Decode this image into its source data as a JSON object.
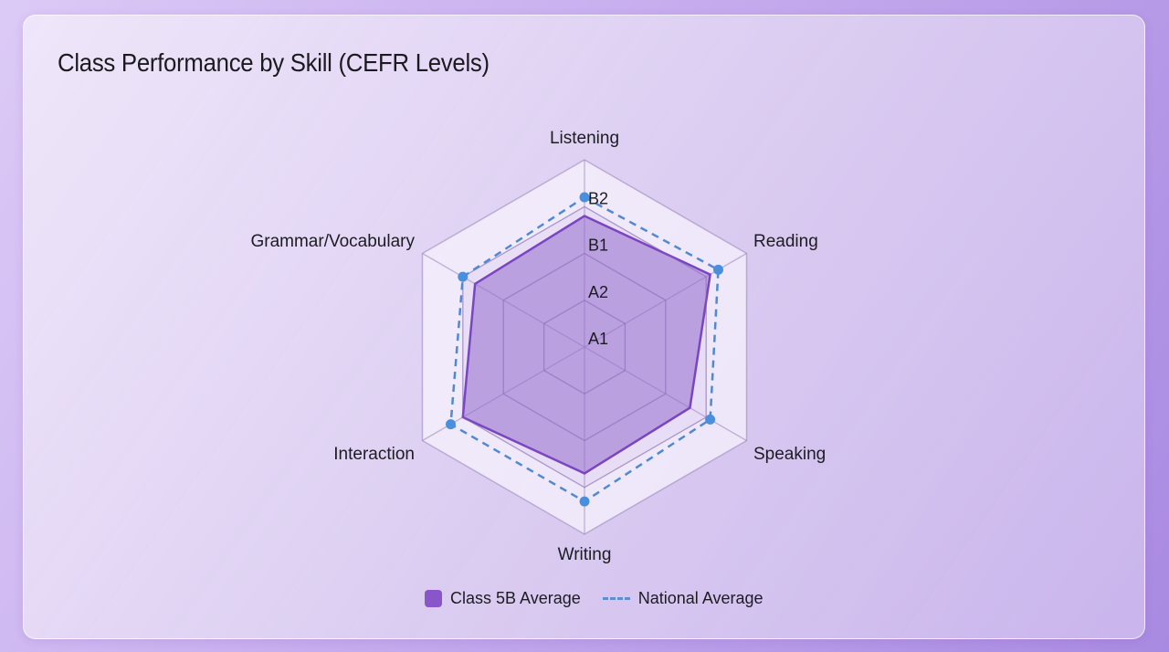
{
  "card": {
    "title": "Class Performance by Skill (CEFR Levels)"
  },
  "legend": {
    "items": [
      {
        "label": "Class 5B Average",
        "style": "filled-box",
        "color": "#8a55c8"
      },
      {
        "label": "National Average",
        "style": "dashed-line",
        "color": "#5a8fd6"
      }
    ]
  },
  "colors": {
    "class_fill": "rgba(150,110,205,0.55)",
    "class_stroke": "#7a45c0",
    "national_stroke": "#4f89d4",
    "national_point": "#4a8fdc",
    "grid_line": "rgba(150,130,185,0.55)",
    "outer_band": "rgba(246,242,252,0.75)"
  },
  "chart_data": {
    "type": "radar",
    "title": "Class Performance by Skill (CEFR Levels)",
    "categories": [
      "Listening",
      "Reading",
      "Speaking",
      "Writing",
      "Interaction",
      "Grammar/Vocabulary"
    ],
    "scale": {
      "min": 1,
      "max": 5,
      "step": 1,
      "tick_labels": [
        {
          "value": 1,
          "label": "A1"
        },
        {
          "value": 2,
          "label": "A2"
        },
        {
          "value": 3,
          "label": "B1"
        },
        {
          "value": 4,
          "label": "B2"
        }
      ]
    },
    "series": [
      {
        "name": "Class 5B Average",
        "style": "filled",
        "values": [
          3.8,
          4.1,
          3.6,
          3.7,
          4.0,
          3.7
        ]
      },
      {
        "name": "National Average",
        "style": "dashed",
        "values": [
          4.2,
          4.3,
          4.1,
          4.3,
          4.3,
          4.0
        ]
      }
    ],
    "legend_position": "bottom",
    "grid": true
  }
}
